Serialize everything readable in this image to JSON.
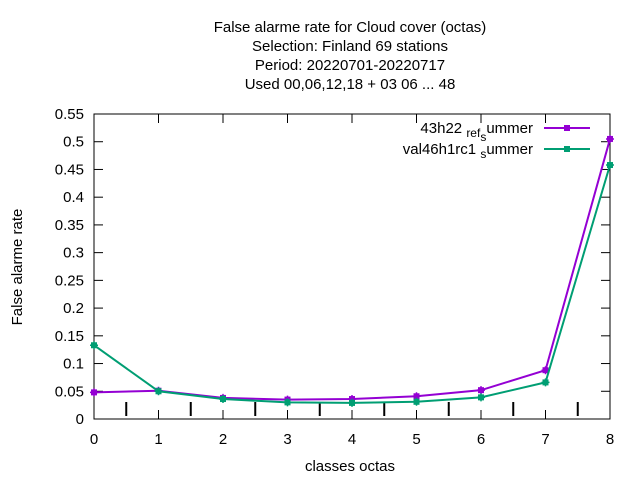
{
  "chart_data": {
    "type": "line",
    "title_lines": [
      "False alarme rate  for Cloud cover (octas)",
      "Selection: Finland      69 stations",
      "Period: 20220701-20220717",
      "Used  00,06,12,18  + 03 06 ... 48"
    ],
    "xlabel": "classes octas",
    "ylabel": "False alarme rate",
    "xlim": [
      0,
      8
    ],
    "ylim": [
      0,
      0.55
    ],
    "x_ticks": [
      "0",
      "1",
      "2",
      "3",
      "4",
      "5",
      "6",
      "7",
      "8"
    ],
    "y_ticks": [
      "0",
      "0.05",
      "0.1",
      "0.15",
      "0.2",
      "0.25",
      "0.3",
      "0.35",
      "0.4",
      "0.45",
      "0.5",
      "0.55"
    ],
    "x": [
      0,
      1,
      2,
      3,
      4,
      5,
      6,
      7,
      8
    ],
    "series": [
      {
        "name_parts": [
          "43h22 ",
          "ref",
          "s",
          "ummer"
        ],
        "color": "#9400d3",
        "values": [
          0.048,
          0.051,
          0.038,
          0.035,
          0.036,
          0.041,
          0.052,
          0.088,
          0.505
        ]
      },
      {
        "name_parts": [
          "val46h1rc1 ",
          "",
          "s",
          "ummer"
        ],
        "color": "#009e73",
        "values": [
          0.133,
          0.05,
          0.036,
          0.03,
          0.029,
          0.031,
          0.039,
          0.066,
          0.458
        ]
      }
    ]
  }
}
